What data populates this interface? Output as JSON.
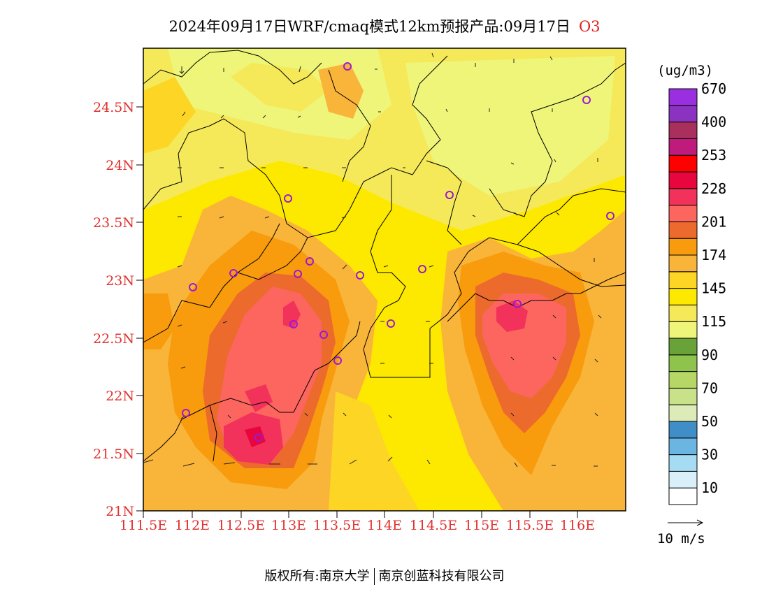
{
  "title": {
    "text": "2024年09月17日WRF/cmaq模式12km预报产品:09月17日",
    "species": "O3"
  },
  "map": {
    "lat_ticks": [
      "24.5N",
      "24N",
      "23.5N",
      "23N",
      "22.5N",
      "22N",
      "21.5N",
      "21N"
    ],
    "lon_ticks": [
      "111.5E",
      "112E",
      "112.5E",
      "113E",
      "113.5E",
      "114E",
      "114.5E",
      "115E",
      "115.5E",
      "116E"
    ]
  },
  "colorbar": {
    "unit": "(ug/m3)",
    "colors": [
      "#ffffff",
      "#d9f0fa",
      "#a5dcf4",
      "#6bb5e2",
      "#3f8ec7",
      "#dcebb8",
      "#c9e28a",
      "#b6d765",
      "#8ec44b",
      "#6aa23a",
      "#eef578",
      "#f5e95a",
      "#fde800",
      "#fdd525",
      "#f9b43a",
      "#f89b0c",
      "#ec6a2c",
      "#fc665e",
      "#f2325a",
      "#e8063f",
      "#fe0000",
      "#c01a7d",
      "#a9305c",
      "#8b33c0",
      "#9a2fe0"
    ],
    "labels": [
      "10",
      "30",
      "50",
      "70",
      "90",
      "115",
      "145",
      "174",
      "201",
      "228",
      "253",
      "400",
      "670"
    ]
  },
  "wind_ref": "10 m/s",
  "footer": {
    "left": "版权所有:南京大学",
    "right": "南京创蓝科技有限公司"
  }
}
